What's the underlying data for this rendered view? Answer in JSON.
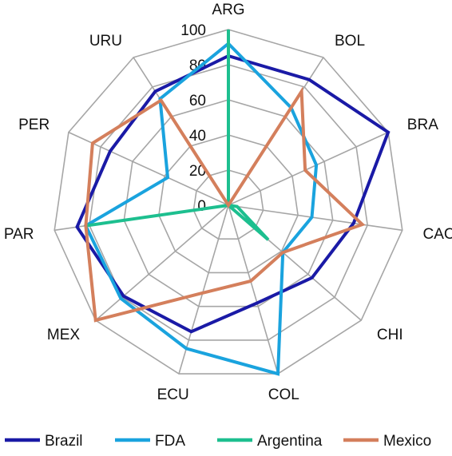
{
  "chart_data": {
    "type": "radar",
    "categories": [
      "ARG",
      "BOL",
      "BRA",
      "CAC",
      "CHI",
      "COL",
      "ECU",
      "MEX",
      "PAR",
      "PER",
      "URU"
    ],
    "rlim": [
      0,
      100
    ],
    "ticks": [
      0,
      20,
      40,
      60,
      80,
      100
    ],
    "grid": true,
    "legend_position": "bottom",
    "series": [
      {
        "name": "Brazil",
        "color": "#1a1aa6",
        "values": [
          85,
          85,
          100,
          72,
          63,
          58,
          75,
          79,
          87,
          74,
          77
        ]
      },
      {
        "name": "FDA",
        "color": "#1aa3de",
        "values": [
          92,
          66,
          55,
          48,
          41,
          100,
          85,
          81,
          82,
          38,
          72
        ]
      },
      {
        "name": "Argentina",
        "color": "#1dbf8f",
        "values": [
          100,
          0,
          0,
          5,
          30,
          0,
          0,
          0,
          82,
          0,
          0
        ]
      },
      {
        "name": "Mexico",
        "color": "#d47f5c",
        "values": [
          0,
          77,
          48,
          77,
          41,
          45,
          52,
          100,
          82,
          85,
          71
        ]
      }
    ]
  }
}
